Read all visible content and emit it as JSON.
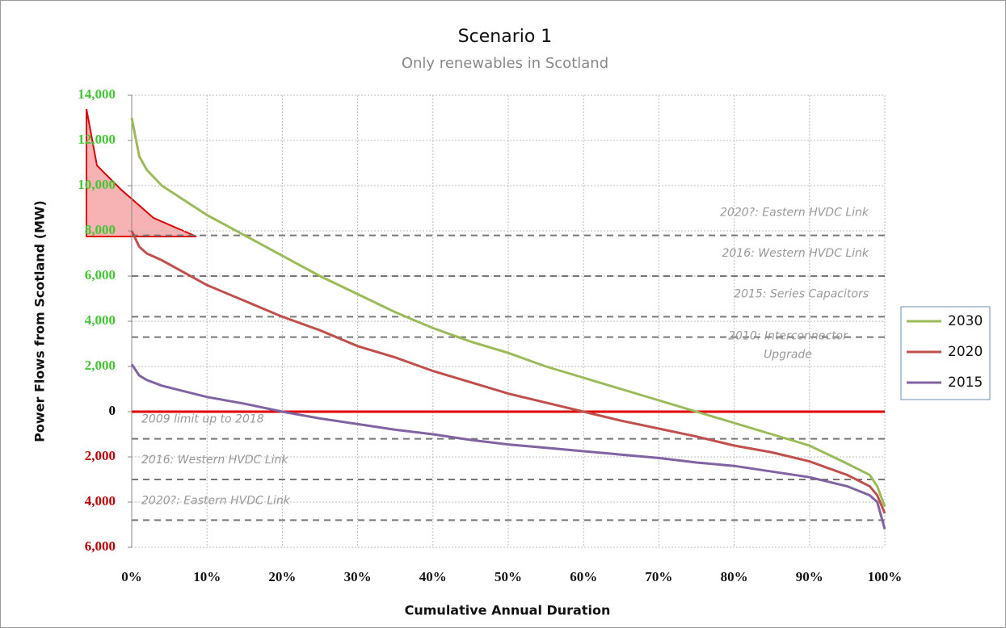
{
  "chart_data": {
    "type": "line",
    "title": "Scenario 1",
    "subtitle": "Only renewables in Scotland",
    "y_label": "Power Flows from Scotland (MW)",
    "x_label": "Cumulative Annual Duration",
    "xlim": [
      0,
      100
    ],
    "xticks": [
      {
        "value": 0,
        "label": "0%"
      },
      {
        "value": 10,
        "label": "10%"
      },
      {
        "value": 20,
        "label": "20%"
      },
      {
        "value": 30,
        "label": "30%"
      },
      {
        "value": 40,
        "label": "40%"
      },
      {
        "value": 50,
        "label": "50%"
      },
      {
        "value": 60,
        "label": "60%"
      },
      {
        "value": 70,
        "label": "70%"
      },
      {
        "value": 80,
        "label": "80%"
      },
      {
        "value": 90,
        "label": "90%"
      },
      {
        "value": 100,
        "label": "100%"
      }
    ],
    "ylim": [
      -6000,
      14000
    ],
    "yticks": [
      {
        "value": 14000,
        "label": "14,000"
      },
      {
        "value": 12000,
        "label": "12,000"
      },
      {
        "value": 10000,
        "label": "10,000"
      },
      {
        "value": 8000,
        "label": "8,000"
      },
      {
        "value": 6000,
        "label": "6,000"
      },
      {
        "value": 4000,
        "label": "4,000"
      },
      {
        "value": 2000,
        "label": "2,000"
      },
      0,
      {
        "value": -2000,
        "label": "2,000"
      },
      {
        "value": -4000,
        "label": "4,000"
      },
      {
        "value": -6000,
        "label": "6,000"
      }
    ],
    "ytick_colors": [
      "#44c634",
      "#44c634",
      "#44c634",
      "#44c634",
      "#44c634",
      "#44c634",
      "#44c634",
      "#000000",
      "#c00000",
      "#c00000",
      "#c00000"
    ],
    "grid": true,
    "zero_line_color": "#e00000",
    "legend": "right",
    "x": [
      0,
      1,
      2,
      4,
      10,
      15,
      20,
      25,
      30,
      35,
      40,
      45,
      50,
      55,
      60,
      65,
      70,
      75,
      80,
      85,
      90,
      95,
      98,
      99,
      100
    ],
    "series": [
      {
        "name": "2030",
        "color": "#9bbb59",
        "values": [
          13000,
          11300,
          10700,
          10000,
          8700,
          7800,
          6900,
          6000,
          5200,
          4400,
          3700,
          3100,
          2600,
          2000,
          1500,
          1000,
          500,
          0,
          -500,
          -1000,
          -1500,
          -2300,
          -2800,
          -3300,
          -4200
        ]
      },
      {
        "name": "2020",
        "color": "#c0504d",
        "values": [
          8000,
          7300,
          7000,
          6700,
          5600,
          4900,
          4200,
          3600,
          2900,
          2400,
          1800,
          1300,
          800,
          400,
          0,
          -400,
          -750,
          -1100,
          -1500,
          -1800,
          -2200,
          -2800,
          -3300,
          -3700,
          -4500
        ]
      },
      {
        "name": "2015",
        "color": "#8064a2",
        "values": [
          2100,
          1600,
          1400,
          1150,
          650,
          350,
          0,
          -300,
          -550,
          -800,
          -1000,
          -1250,
          -1450,
          -1600,
          -1750,
          -1900,
          -2050,
          -2250,
          -2400,
          -2650,
          -2900,
          -3300,
          -3700,
          -4000,
          -5200
        ]
      }
    ],
    "reference_lines": [
      {
        "value": 7800,
        "label_lines": [
          "2020?: Eastern HVDC Link"
        ]
      },
      {
        "value": 6000,
        "label_lines": [
          "2016: Western HVDC Link"
        ]
      },
      {
        "value": 4200,
        "label_lines": [
          "2015: Series Capacitors"
        ]
      },
      {
        "value": 3300,
        "label_lines": [
          "2010: Interconnector",
          "Upgrade"
        ]
      },
      {
        "value": -1200,
        "label_lines": [
          "2009 limit up to 2018"
        ]
      },
      {
        "value": -3000,
        "label_lines": [
          "2016: Western HVDC Link"
        ]
      },
      {
        "value": -4800,
        "label_lines": [
          "2020?: Eastern HVDC Link"
        ]
      }
    ]
  }
}
